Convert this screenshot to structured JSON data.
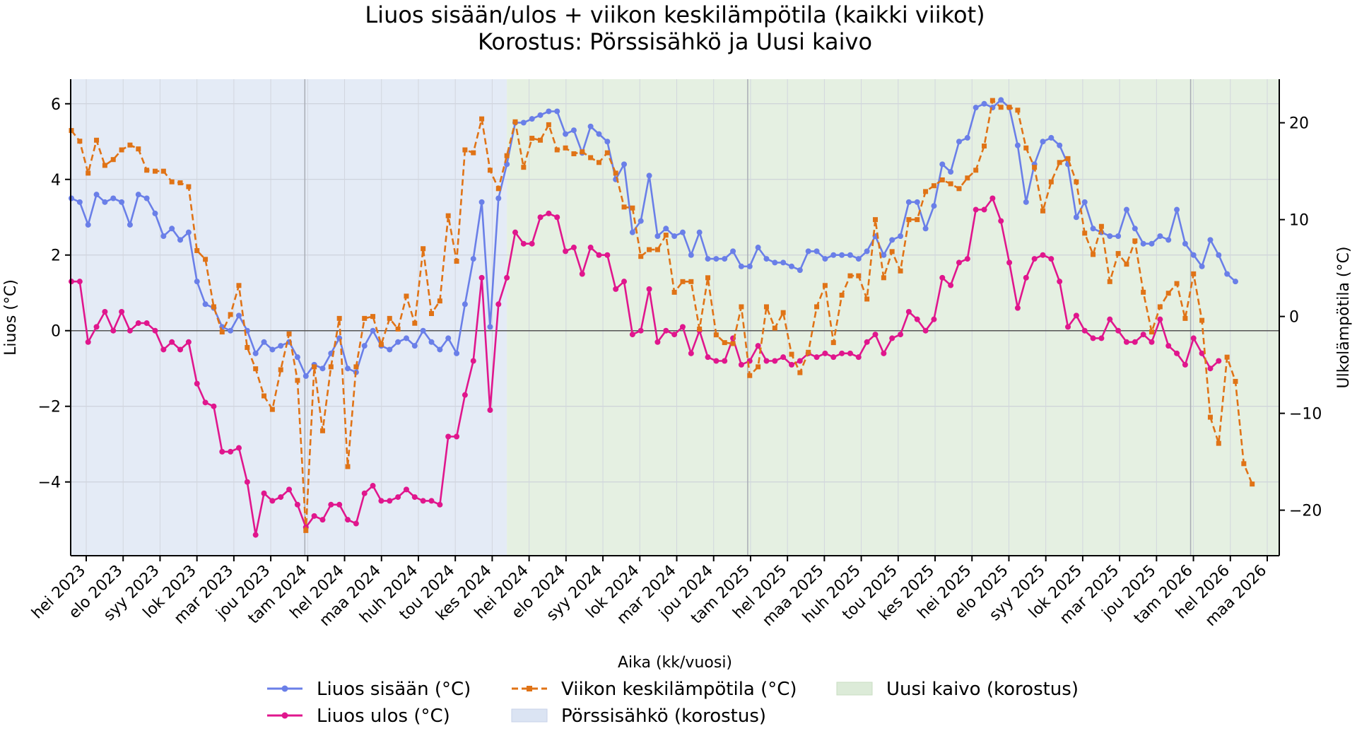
{
  "chart_data": {
    "type": "line",
    "title": "Liuos sisään/ulos + viikon keskilämpötila (kaikki viikot)",
    "subtitle": "Korostus: Pörssisähkö ja Uusi kaivo",
    "xlabel": "Aika (kk/vuosi)",
    "ylabel_left": "Liuos (°C)",
    "ylabel_right": "Ulkolämpötila (°C)",
    "ylim_left": [
      -5.95,
      6.65
    ],
    "ylim_right": [
      -24.7,
      24.5
    ],
    "left_ticks": [
      "−4",
      "−2",
      "0",
      "2",
      "4",
      "6"
    ],
    "right_ticks": [
      "−20",
      "−10",
      "0",
      "10",
      "20"
    ],
    "x_tick_labels": [
      "hei 2023",
      "elo 2023",
      "syy 2023",
      "lok 2023",
      "mar 2023",
      "jou 2023",
      "tam 2024",
      "hel 2024",
      "maa 2024",
      "huh 2024",
      "tou 2024",
      "kes 2024",
      "hei 2024",
      "elo 2024",
      "syy 2024",
      "lok 2024",
      "mar 2024",
      "jou 2024",
      "tam 2025",
      "hel 2025",
      "maa 2025",
      "huh 2025",
      "tou 2025",
      "kes 2025",
      "hei 2025",
      "elo 2025",
      "syy 2025",
      "lok 2025",
      "mar 2025",
      "jou 2025",
      "tam 2026",
      "hel 2026",
      "maa 2026"
    ],
    "grid": true,
    "legend_position": "bottom",
    "highlight_regions": [
      {
        "name": "Pörssisähkö (korostus)",
        "from_index": 0,
        "to_index": 52,
        "color": "#dbe4f3"
      },
      {
        "name": "Uusi kaivo (korostus)",
        "from_index": 52,
        "to_index": 145,
        "color": "#dcebd8"
      }
    ],
    "series": [
      {
        "name": "Liuos sisään (°C)",
        "axis": "left",
        "color": "#6a7fe8",
        "style": "solid",
        "marker": "circle",
        "values": [
          3.5,
          3.4,
          2.8,
          3.6,
          3.4,
          3.5,
          3.4,
          2.8,
          3.6,
          3.5,
          3.1,
          2.5,
          2.7,
          2.4,
          2.6,
          1.3,
          0.7,
          0.6,
          0.1,
          0.0,
          0.4,
          0.0,
          -0.6,
          -0.3,
          -0.5,
          -0.4,
          -0.3,
          -0.7,
          -1.2,
          -0.9,
          -1.0,
          -0.6,
          -0.2,
          -1.0,
          -1.1,
          -0.4,
          0.0,
          -0.4,
          -0.5,
          -0.3,
          -0.2,
          -0.4,
          0.0,
          -0.3,
          -0.5,
          -0.2,
          -0.6,
          0.7,
          1.9,
          3.4,
          0.1,
          3.5,
          4.4,
          5.5,
          5.5,
          5.6,
          5.7,
          5.8,
          5.8,
          5.2,
          5.3,
          4.7,
          5.4,
          5.2,
          5.0,
          4.0,
          4.4,
          2.6,
          2.9,
          4.1,
          2.5,
          2.7,
          2.5,
          2.6,
          2.0,
          2.6,
          1.9,
          1.9,
          1.9,
          2.1,
          1.7,
          1.7,
          2.2,
          1.9,
          1.8,
          1.8,
          1.7,
          1.6,
          2.1,
          2.1,
          1.9,
          2.0,
          2.0,
          2.0,
          1.9,
          2.1,
          2.5,
          2.0,
          2.4,
          2.5,
          3.4,
          3.4,
          2.7,
          3.3,
          4.4,
          4.2,
          5.0,
          5.1,
          5.9,
          6.0,
          5.9,
          6.1,
          5.9,
          4.9,
          3.4,
          4.4,
          5.0,
          5.1,
          4.9,
          4.4,
          3.0,
          3.4,
          2.7,
          2.6,
          2.5,
          2.5,
          3.2,
          2.7,
          2.3,
          2.3,
          2.5,
          2.4,
          3.2,
          2.3,
          2.0,
          1.7,
          2.4,
          2.0,
          1.5,
          1.3
        ]
      },
      {
        "name": "Liuos ulos (°C)",
        "axis": "left",
        "color": "#e0168d",
        "style": "solid",
        "marker": "circle",
        "values": [
          1.3,
          1.3,
          -0.3,
          0.1,
          0.5,
          0.0,
          0.5,
          0.0,
          0.2,
          0.2,
          0.0,
          -0.5,
          -0.3,
          -0.5,
          -0.3,
          -1.4,
          -1.9,
          -2.0,
          -3.2,
          -3.2,
          -3.1,
          -4.0,
          -5.4,
          -4.3,
          -4.5,
          -4.4,
          -4.2,
          -4.6,
          -5.2,
          -4.9,
          -5.0,
          -4.6,
          -4.6,
          -5.0,
          -5.1,
          -4.3,
          -4.1,
          -4.5,
          -4.5,
          -4.4,
          -4.2,
          -4.4,
          -4.5,
          -4.5,
          -4.6,
          -2.8,
          -2.8,
          -1.7,
          -0.8,
          1.4,
          -2.1,
          0.7,
          1.4,
          2.6,
          2.3,
          2.3,
          3.0,
          3.1,
          3.0,
          2.1,
          2.2,
          1.5,
          2.2,
          2.0,
          2.0,
          1.1,
          1.3,
          -0.1,
          0.0,
          1.1,
          -0.3,
          0.0,
          -0.1,
          0.1,
          -0.6,
          0.0,
          -0.7,
          -0.8,
          -0.8,
          -0.2,
          -0.9,
          -0.8,
          -0.4,
          -0.8,
          -0.8,
          -0.7,
          -0.9,
          -0.8,
          -0.6,
          -0.7,
          -0.6,
          -0.7,
          -0.6,
          -0.6,
          -0.7,
          -0.3,
          -0.1,
          -0.6,
          -0.2,
          -0.1,
          0.5,
          0.3,
          0.0,
          0.3,
          1.4,
          1.2,
          1.8,
          1.9,
          3.2,
          3.2,
          3.5,
          2.9,
          1.8,
          0.6,
          1.4,
          1.9,
          2.0,
          1.9,
          1.3,
          0.1,
          0.4,
          0.0,
          -0.2,
          -0.2,
          0.3,
          0.0,
          -0.3,
          -0.3,
          -0.1,
          -0.3,
          0.3,
          -0.4,
          -0.6,
          -0.9,
          -0.2,
          -0.6,
          -1.0,
          -0.8
        ]
      },
      {
        "name": "Viikon keskilämpötila (°C)",
        "axis": "right",
        "color": "#e07316",
        "style": "dashed",
        "marker": "square",
        "values": [
          19.2,
          18.1,
          14.8,
          18.2,
          15.6,
          16.2,
          17.2,
          17.7,
          17.3,
          15.1,
          15.0,
          15.0,
          13.9,
          13.8,
          13.4,
          6.8,
          5.9,
          1.0,
          -1.6,
          0.2,
          3.2,
          -3.2,
          -5.4,
          -8.2,
          -9.6,
          -5.5,
          -1.8,
          -6.6,
          -22.1,
          -5.2,
          -11.8,
          -5.2,
          -0.2,
          -15.5,
          -5.2,
          -0.2,
          0.0,
          -2.9,
          -0.2,
          -1.3,
          2.1,
          -0.7,
          7.0,
          0.3,
          1.6,
          10.4,
          5.7,
          17.2,
          16.9,
          20.4,
          15.1,
          13.2,
          16.6,
          20.1,
          15.4,
          18.4,
          18.2,
          19.8,
          17.2,
          17.4,
          16.8,
          17.0,
          16.4,
          15.9,
          16.9,
          14.8,
          11.3,
          11.2,
          6.2,
          6.9,
          6.9,
          8.4,
          2.5,
          3.6,
          3.6,
          -1.3,
          4.0,
          -1.9,
          -2.7,
          -2.8,
          1.0,
          -6.1,
          -5.2,
          1.0,
          -1.2,
          0.4,
          -3.9,
          -5.8,
          -3.7,
          1.0,
          3.2,
          -2.7,
          2.2,
          4.2,
          4.2,
          1.8,
          10.0,
          4.0,
          6.7,
          4.7,
          10.0,
          10.0,
          12.9,
          13.5,
          14.1,
          13.7,
          13.2,
          14.3,
          15.1,
          17.6,
          22.3,
          21.6,
          21.6,
          21.3,
          17.4,
          15.4,
          10.9,
          13.9,
          15.9,
          16.3,
          13.9,
          8.6,
          6.4,
          9.3,
          3.6,
          6.5,
          5.4,
          7.8,
          2.5,
          -1.6,
          1.0,
          2.4,
          3.4,
          -0.2,
          4.4,
          -0.4,
          -10.4,
          -13.1,
          -4.2,
          -6.7,
          -15.2,
          -17.3
        ]
      }
    ]
  }
}
